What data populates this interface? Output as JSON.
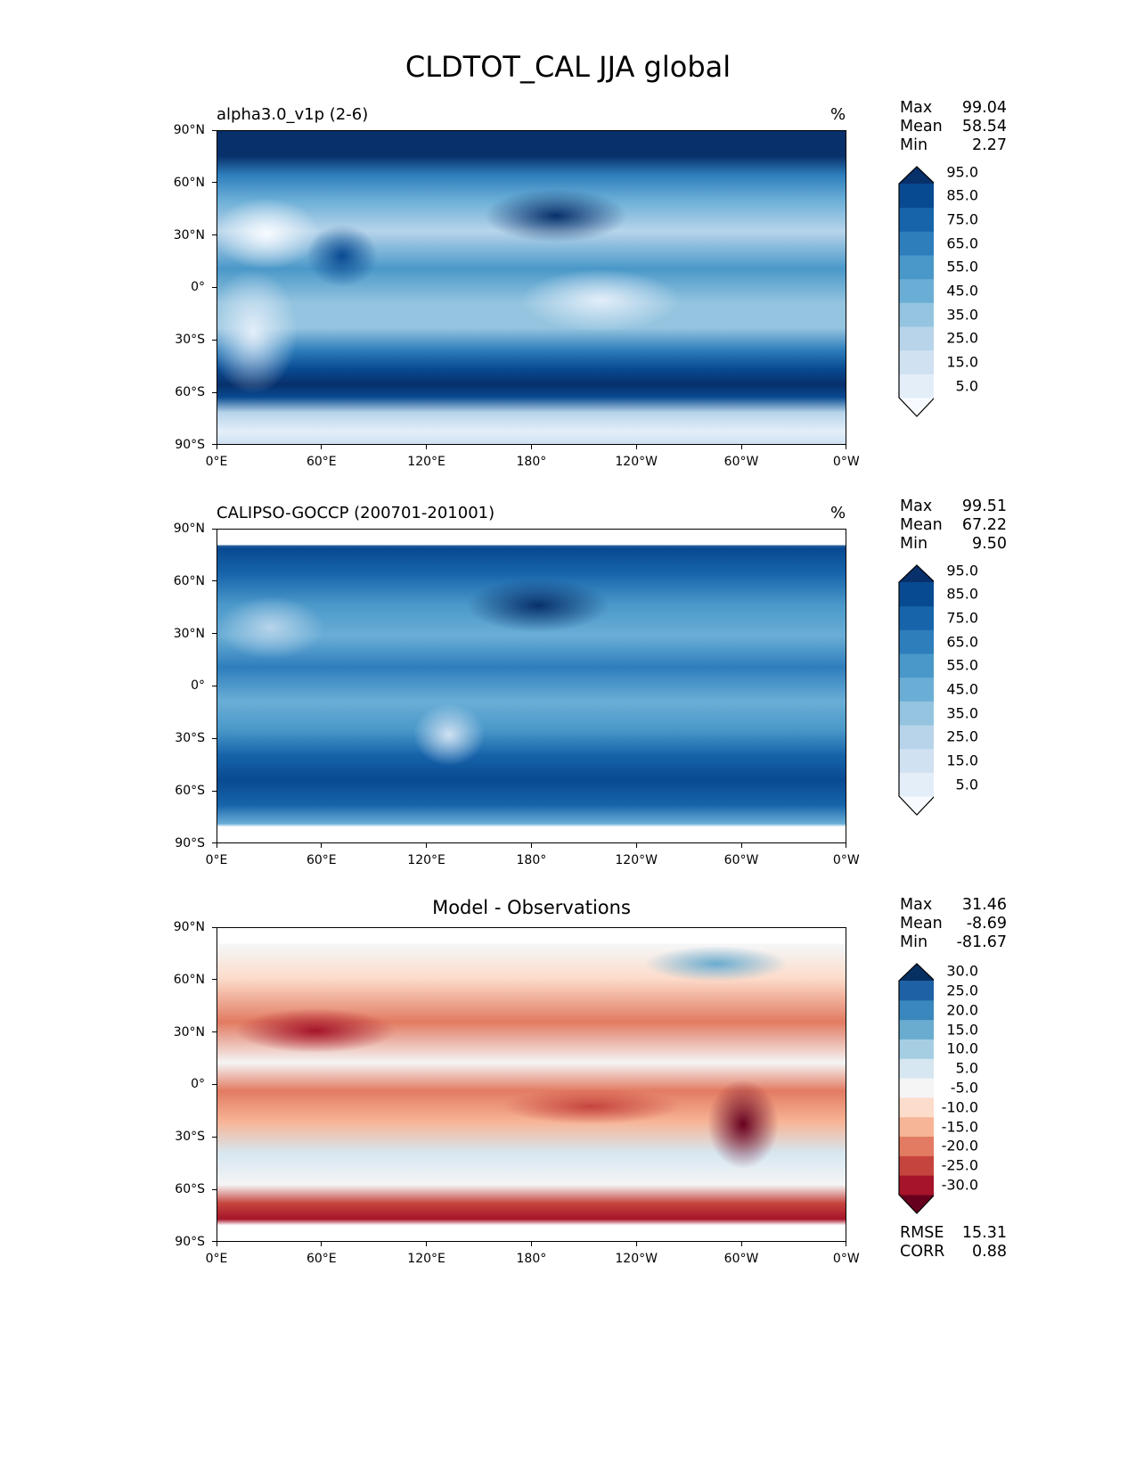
{
  "title": "CLDTOT_CAL JJA global",
  "x_ticks": [
    "0°E",
    "60°E",
    "120°E",
    "180°",
    "120°W",
    "60°W",
    "0°W"
  ],
  "y_ticks": [
    "90°N",
    "60°N",
    "30°N",
    "0°",
    "30°S",
    "60°S",
    "90°S"
  ],
  "panels": [
    {
      "title": "alpha3.0_v1p (2-6)",
      "units": "%",
      "stats": {
        "max_label": "Max",
        "max": "99.04",
        "mean_label": "Mean",
        "mean": "58.54",
        "min_label": "Min",
        "min": "2.27"
      }
    },
    {
      "title": "CALIPSO-GOCCP (200701-201001)",
      "units": "%",
      "stats": {
        "max_label": "Max",
        "max": "99.51",
        "mean_label": "Mean",
        "mean": "67.22",
        "min_label": "Min",
        "min": "9.50"
      }
    },
    {
      "title": "Model - Observations",
      "units": "",
      "stats": {
        "max_label": "Max",
        "max": "31.46",
        "mean_label": "Mean",
        "mean": "-8.69",
        "min_label": "Min",
        "min": "-81.67"
      }
    }
  ],
  "metrics": {
    "rmse_label": "RMSE",
    "rmse": "15.31",
    "corr_label": "CORR",
    "corr": "0.88"
  },
  "chart_data": [
    {
      "type": "heatmap",
      "name": "model",
      "colorbar_levels": [
        "5.0",
        "15.0",
        "25.0",
        "35.0",
        "45.0",
        "55.0",
        "65.0",
        "75.0",
        "85.0",
        "95.0"
      ],
      "colors": [
        "#f7fbff",
        "#e3eef9",
        "#d0e1f2",
        "#b7d4ea",
        "#94c4df",
        "#6aaed6",
        "#4a98c9",
        "#2e7ebc",
        "#1764ab",
        "#084a91",
        "#08306b"
      ]
    },
    {
      "type": "heatmap",
      "name": "obs",
      "colorbar_levels": [
        "5.0",
        "15.0",
        "25.0",
        "35.0",
        "45.0",
        "55.0",
        "65.0",
        "75.0",
        "85.0",
        "95.0"
      ],
      "colors": [
        "#f7fbff",
        "#e3eef9",
        "#d0e1f2",
        "#b7d4ea",
        "#94c4df",
        "#6aaed6",
        "#4a98c9",
        "#2e7ebc",
        "#1764ab",
        "#084a91",
        "#08306b"
      ]
    },
    {
      "type": "heatmap",
      "name": "diff",
      "colorbar_levels": [
        "-30.0",
        "-25.0",
        "-20.0",
        "-15.0",
        "-10.0",
        "-5.0",
        "5.0",
        "10.0",
        "15.0",
        "20.0",
        "25.0",
        "30.0"
      ],
      "colors": [
        "#67001f",
        "#a51429",
        "#c6443e",
        "#e27b62",
        "#f7b597",
        "#fcdccb",
        "#f5f5f5",
        "#d6e7f1",
        "#a5cee3",
        "#6aacd0",
        "#3a87bd",
        "#1e61a5",
        "#053061"
      ]
    }
  ]
}
